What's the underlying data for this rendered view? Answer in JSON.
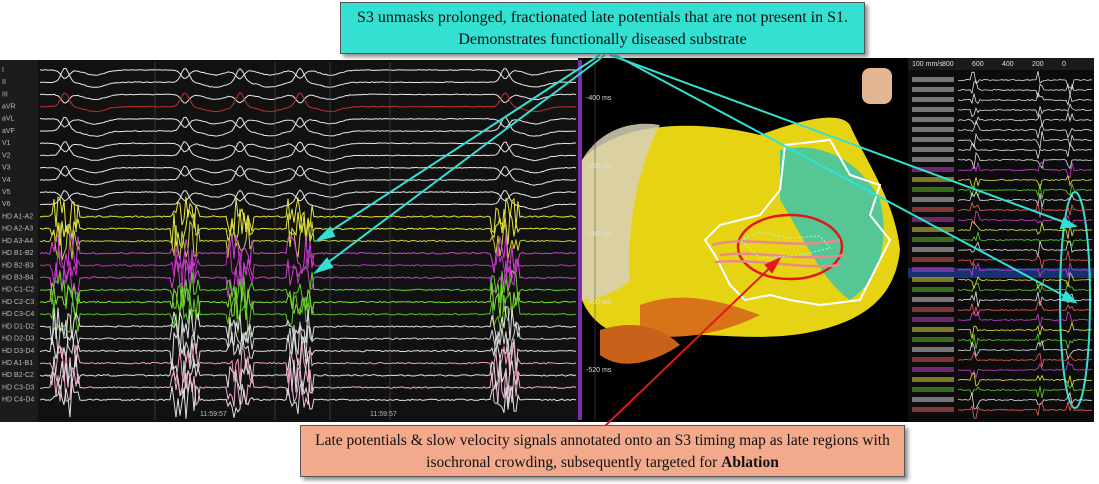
{
  "callouts": {
    "top": "S3 unmasks prolonged, fractionated late potentials that are not present in S1. Demonstrates functionally diseased substrate",
    "bottom": {
      "text": "Late potentials & slow velocity signals annotated onto an S3 timing map as late regions with isochronal crowding, subsequently targeted for",
      "emphasis": "Ablation"
    }
  },
  "left_panel": {
    "leads": [
      "I",
      "II",
      "III",
      "aVR",
      "aVL",
      "aVF",
      "V1",
      "V2",
      "V3",
      "V4",
      "V5",
      "V6",
      "HD A1-A2",
      "HD A2-A3",
      "HD A3-A4",
      "HD B1-B2",
      "HD B2-B3",
      "HD B3-B4",
      "HD C1-C2",
      "HD C2-C3",
      "HD C3-C4",
      "HD D1-D2",
      "HD D2-D3",
      "HD D3-D4",
      "HD A1-B1",
      "HD B2-C2",
      "HD C3-D3",
      "HD C4-D4"
    ],
    "times": [
      "11:59:57",
      "11:59:57"
    ]
  },
  "map_panel": {
    "scale": [
      "-400 ms",
      "-160 ms",
      "-280 ms",
      "-400 ms",
      "-520 ms"
    ]
  },
  "right_panel": {
    "header": [
      "100 mm/s",
      "800",
      "600",
      "400",
      "200",
      "0"
    ]
  }
}
